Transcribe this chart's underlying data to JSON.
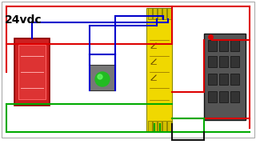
{
  "bg_color": "#ffffff",
  "title_text": "24vdc",
  "red": "#dd0000",
  "green": "#00aa00",
  "blue": "#0000cc",
  "black": "#111111",
  "yellow": "#f0d800",
  "gray_dark": "#444444",
  "gray_med": "#888888",
  "lw": 1.5
}
